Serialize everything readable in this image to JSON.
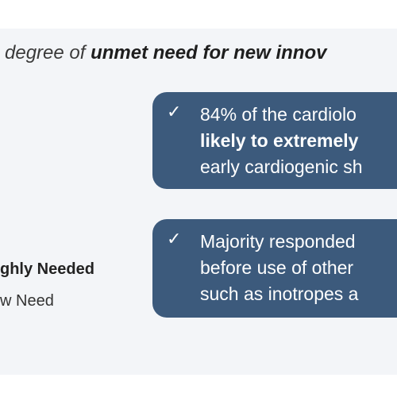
{
  "headline": {
    "before": "degree of ",
    "emphasis": "unmet need for new innov"
  },
  "cards": [
    {
      "check": "✓",
      "line1": "84% of the cardiolo",
      "line2": "likely to extremely",
      "line3": "early cardiogenic sh"
    },
    {
      "check": "✓",
      "line1": "Majority responded",
      "line2": "before use of other",
      "line3": "such as inotropes a"
    }
  ],
  "legend": {
    "item1": "ghly Needed",
    "item2": "w Need"
  },
  "colors": {
    "card_fill": "#3c5a7c",
    "panel_fill": "#f3f5f8"
  }
}
